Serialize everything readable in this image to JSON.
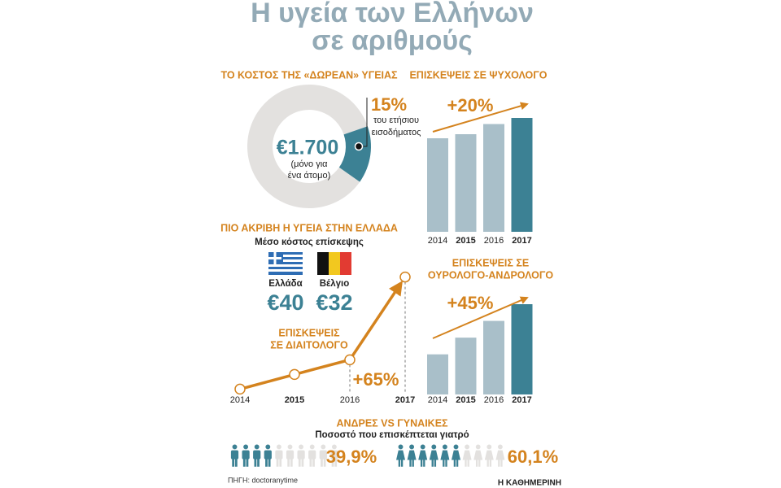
{
  "header": {
    "title": [
      "Η υγεία των Ελλήνων",
      "σε αριθμούς"
    ]
  },
  "chart_data": [
    {
      "type": "pie",
      "title": "ΤΟ ΚΟΣΤΟΣ ΤΗΣ «ΔΩΡΕΑΝ» ΥΓΕΙΑΣ",
      "values": [
        85,
        15
      ],
      "value_labels": [
        null,
        "15%"
      ],
      "value_note": [
        "του ετήσιου",
        "εισοδήματος"
      ],
      "colors": [
        "#e3e1df",
        "#3c8194"
      ],
      "center_label": "€1.700",
      "center_note": [
        "(μόνο για",
        "ένα άτομο)"
      ]
    },
    {
      "type": "bar",
      "title": "ΕΠΙΣΚΕΨΕΙΣ ΣΕ ΨΥΧΟΛΟΓΟ",
      "categories": [
        "2014",
        "2015",
        "2016",
        "2017"
      ],
      "values": [
        100,
        104,
        114,
        120
      ],
      "colors": [
        "#a9bfc9",
        "#a9bfc9",
        "#a9bfc9",
        "#3c8194"
      ],
      "ylim": [
        8,
        120
      ],
      "annotation": "+20%"
    },
    {
      "type": "bar",
      "title": [
        "ΕΠΙΣΚΕΨΕΙΣ ΣΕ",
        "ΟΥΡΟΛΟΓΟ-ΑΝΔΡΟΛΟΓΟ"
      ],
      "categories": [
        "2014",
        "2015",
        "2016",
        "2017"
      ],
      "values": [
        100,
        115,
        130,
        145
      ],
      "colors": [
        "#a9bfc9",
        "#a9bfc9",
        "#a9bfc9",
        "#3c8194"
      ],
      "ylim": [
        64,
        145
      ],
      "annotation": "+45%"
    },
    {
      "type": "line",
      "title": [
        "ΕΠΙΣΚΕΨΕΙΣ",
        "ΣΕ ΔΙΑΙΤΟΛΟΓΟ"
      ],
      "categories": [
        "2014",
        "2015",
        "2016",
        "2017"
      ],
      "values": [
        100,
        108.5,
        117,
        165
      ],
      "color": "#d4831e",
      "ylim": [
        95,
        170
      ],
      "annotation": "+65%"
    },
    {
      "type": "pictogram",
      "title": "ΑΝΔΡΕΣ VS ΓΥΝΑΙΚΕΣ",
      "subtitle": "Ποσοστό που επισκέπτεται γιατρό",
      "values": [
        39.9,
        60.1
      ],
      "value_labels": [
        "39,9%",
        "60,1%"
      ],
      "icons": [
        "male",
        "female"
      ],
      "icon_count": 10,
      "ylim": [
        0,
        100
      ],
      "color": "#3c8194",
      "empty_color": "#e3e1df"
    }
  ],
  "cost_comparison": {
    "title": "ΠΙΟ ΑΚΡΙΒΗ Η ΥΓΕΙΑ ΣΤΗΝ ΕΛΛΑΔΑ",
    "subtitle": "Μέσο κόστος επίσκεψης",
    "items": [
      {
        "country": "Ελλάδα",
        "value_label": "€40"
      },
      {
        "country": "Βέλγιο",
        "value_label": "€32"
      }
    ]
  },
  "footer": {
    "source": "ΠΗΓΗ: doctoranytime",
    "brand": "Η ΚΑΘΗΜΕΡΙΝΗ"
  }
}
